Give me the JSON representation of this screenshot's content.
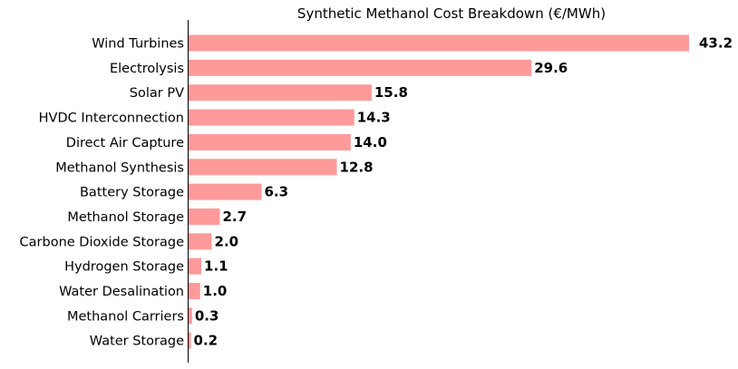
{
  "chart_data": {
    "type": "bar",
    "orientation": "horizontal",
    "title": "Synthetic Methanol Cost Breakdown (€/MWh)",
    "xlabel": "",
    "ylabel": "",
    "grid": false,
    "bar_color": "#ff9a9a",
    "categories": [
      "Wind Turbines",
      "Electrolysis",
      "Solar PV",
      "HVDC Interconnection",
      "Direct Air Capture",
      "Methanol Synthesis",
      "Battery Storage",
      "Methanol Storage",
      "Carbone Dioxide Storage",
      "Hydrogen Storage",
      "Water Desalination",
      "Methanol Carriers",
      "Water Storage"
    ],
    "values": [
      43.2,
      29.6,
      15.8,
      14.3,
      14.0,
      12.8,
      6.3,
      2.7,
      2.0,
      1.1,
      1.0,
      0.3,
      0.2
    ],
    "value_labels": [
      "43.2",
      "29.6",
      "15.8",
      "14.3",
      "14.0",
      "12.8",
      "6.3",
      "2.7",
      "2.0",
      "1.1",
      "1.0",
      "0.3",
      "0.2"
    ]
  }
}
